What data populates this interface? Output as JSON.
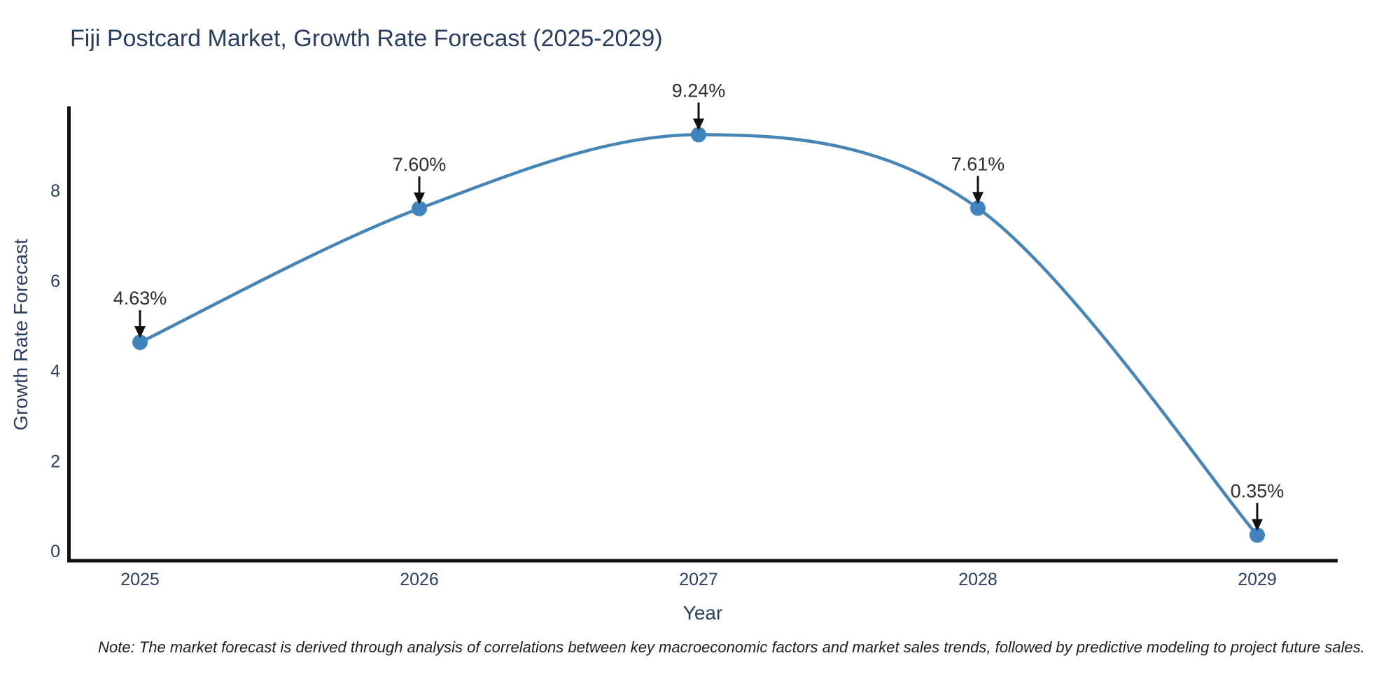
{
  "title": "Fiji Postcard Market, Growth Rate Forecast (2025-2029)",
  "note": "Note: The market forecast is derived through analysis of correlations between key macroeconomic factors and market sales trends, followed by predictive modeling to project future sales.",
  "colors": {
    "title": "#2a3f5f",
    "axis_text": "#2a3f5f",
    "spine": "#111111",
    "line": "#4685b5",
    "marker": "#4183bd",
    "arrow": "#111111",
    "annotation_text": "#2e2e2e",
    "background": "#ffffff"
  },
  "chart_data": {
    "type": "line",
    "title": "Fiji Postcard Market, Growth Rate Forecast (2025-2029)",
    "xlabel": "Year",
    "ylabel": "Growth Rate Forecast",
    "x": [
      2025,
      2026,
      2027,
      2028,
      2029
    ],
    "values": [
      4.63,
      7.6,
      9.24,
      7.61,
      0.35
    ],
    "labels": [
      "4.63%",
      "7.60%",
      "9.24%",
      "7.61%",
      "0.35%"
    ],
    "xticks": [
      "2025",
      "2026",
      "2027",
      "2028",
      "2029"
    ],
    "yticks": [
      0,
      2,
      4,
      6,
      8
    ],
    "ylim": [
      0,
      9.8
    ],
    "xlim": [
      2024.74,
      2029.29
    ],
    "line_shape": "spline",
    "marker": "circle",
    "grid": false,
    "legend": "none",
    "annotations_have_arrows": true
  }
}
